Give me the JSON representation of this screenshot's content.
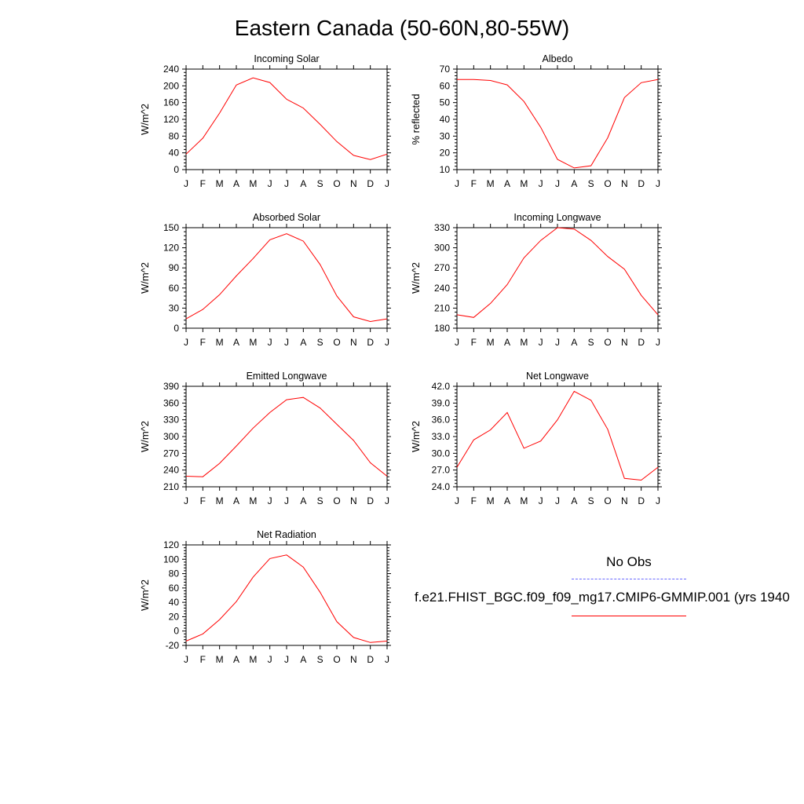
{
  "title": "Eastern Canada (50-60N,80-55W)",
  "colors": {
    "model_line": "#ff0000",
    "obs_line": "#6a6aff",
    "axis": "#000000"
  },
  "legend": {
    "obs_label": "No Obs",
    "model_label": "f.e21.FHIST_BGC.f09_f09_mg17.CMIP6-GMMIP.001 (yrs 1940"
  },
  "chart_data": [
    {
      "id": "incoming-solar",
      "type": "line",
      "title": "Incoming Solar",
      "ylabel": "W/m^2",
      "categories": [
        "J",
        "F",
        "M",
        "A",
        "M",
        "J",
        "J",
        "A",
        "S",
        "O",
        "N",
        "D",
        "J"
      ],
      "ylim": [
        0,
        240
      ],
      "yticks": [
        "0",
        "40",
        "80",
        "120",
        "160",
        "200",
        "240"
      ],
      "values": [
        37,
        75,
        135,
        202,
        219,
        208,
        168,
        147,
        108,
        67,
        34,
        24,
        37
      ]
    },
    {
      "id": "albedo",
      "type": "line",
      "title": "Albedo",
      "ylabel": "% reflected",
      "categories": [
        "J",
        "F",
        "M",
        "A",
        "M",
        "J",
        "J",
        "A",
        "S",
        "O",
        "N",
        "D",
        "J"
      ],
      "ylim": [
        10,
        70
      ],
      "yticks": [
        "10",
        "20",
        "30",
        "40",
        "50",
        "60",
        "70"
      ],
      "values": [
        63.8,
        63.8,
        63.2,
        60.6,
        50.7,
        35.2,
        16.1,
        11.0,
        12.3,
        29.0,
        53.0,
        61.9,
        63.8
      ]
    },
    {
      "id": "absorbed-solar",
      "type": "line",
      "title": "Absorbed Solar",
      "ylabel": "W/m^2",
      "categories": [
        "J",
        "F",
        "M",
        "A",
        "M",
        "J",
        "J",
        "A",
        "S",
        "O",
        "N",
        "D",
        "J"
      ],
      "ylim": [
        0,
        150
      ],
      "yticks": [
        "0",
        "30",
        "60",
        "90",
        "120",
        "150"
      ],
      "values": [
        14,
        28,
        50,
        78,
        104,
        132,
        141,
        130,
        95,
        48,
        17,
        10,
        14
      ]
    },
    {
      "id": "incoming-longwave",
      "type": "line",
      "title": "Incoming Longwave",
      "ylabel": "W/m^2",
      "categories": [
        "J",
        "F",
        "M",
        "A",
        "M",
        "J",
        "J",
        "A",
        "S",
        "O",
        "N",
        "D",
        "J"
      ],
      "ylim": [
        180,
        330
      ],
      "yticks": [
        "180",
        "210",
        "240",
        "270",
        "300",
        "330"
      ],
      "values": [
        200,
        196,
        217,
        245,
        285,
        311,
        330,
        328,
        311,
        287,
        268,
        229,
        200
      ]
    },
    {
      "id": "emitted-longwave",
      "type": "line",
      "title": "Emitted Longwave",
      "ylabel": "W/m^2",
      "categories": [
        "J",
        "F",
        "M",
        "A",
        "M",
        "J",
        "J",
        "A",
        "S",
        "O",
        "N",
        "D",
        "J"
      ],
      "ylim": [
        210,
        390
      ],
      "yticks": [
        "210",
        "240",
        "270",
        "300",
        "330",
        "360",
        "390"
      ],
      "values": [
        229,
        228,
        252,
        283,
        315,
        343,
        366,
        370,
        351,
        322,
        293,
        253,
        229
      ]
    },
    {
      "id": "net-longwave",
      "type": "line",
      "title": "Net Longwave",
      "ylabel": "W/m^2",
      "categories": [
        "J",
        "F",
        "M",
        "A",
        "M",
        "J",
        "J",
        "A",
        "S",
        "O",
        "N",
        "D",
        "J"
      ],
      "ylim": [
        24,
        42
      ],
      "yticks": [
        "24.0",
        "27.0",
        "30.0",
        "33.0",
        "36.0",
        "39.0",
        "42.0"
      ],
      "values": [
        27.5,
        32.4,
        34.2,
        37.3,
        30.9,
        32.2,
        36.0,
        41.1,
        39.5,
        34.3,
        25.5,
        25.2,
        27.5
      ]
    },
    {
      "id": "net-radiation",
      "type": "line",
      "title": "Net Radiation",
      "ylabel": "W/m^2",
      "categories": [
        "J",
        "F",
        "M",
        "A",
        "M",
        "J",
        "J",
        "A",
        "S",
        "O",
        "N",
        "D",
        "J"
      ],
      "ylim": [
        -20,
        120
      ],
      "yticks": [
        "-20",
        "0",
        "20",
        "40",
        "60",
        "80",
        "100",
        "120"
      ],
      "values": [
        -14,
        -4,
        16,
        41,
        75,
        101,
        106,
        89,
        54,
        13,
        -9,
        -16,
        -14
      ]
    }
  ]
}
